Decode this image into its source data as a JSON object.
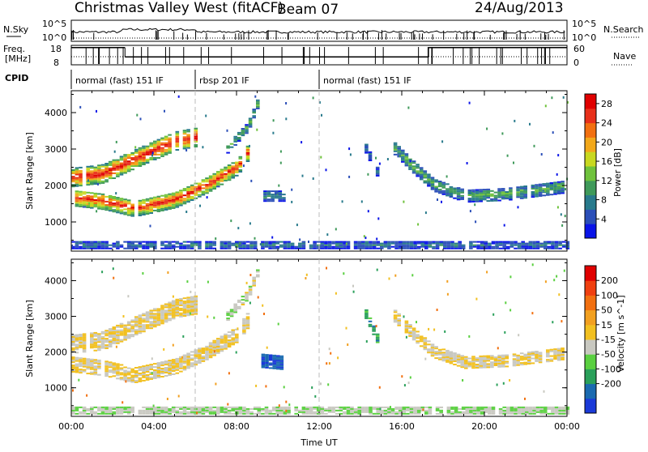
{
  "header": {
    "station": "Christmas Valley West (fitACF)",
    "beam": "Beam 07",
    "date": "24/Aug/2013"
  },
  "status_panel": {
    "nsky_label": "N.Sky",
    "nsearch_label": "N.Search",
    "freq_label_1": "Freq.",
    "freq_label_2": "[MHz]",
    "nave_label": "Nave",
    "cpid_label": "CPID",
    "n_axis": {
      "top": "10^5",
      "bottom": "10^0",
      "right_top": "10^5",
      "right_bottom": "10^0"
    },
    "freq_axis": {
      "top": "18",
      "bottom": "8",
      "ylim": [
        8,
        18
      ]
    },
    "nave_axis": {
      "top": "60",
      "bottom": "0",
      "ylim": [
        0,
        60
      ]
    },
    "cpid_segments": [
      {
        "label": "normal (fast) 151 IF",
        "start_hour": 0.0,
        "end_hour": 6.0
      },
      {
        "label": "rbsp 201 IF",
        "start_hour": 6.0,
        "end_hour": 12.0
      },
      {
        "label": "normal (fast) 151 IF",
        "start_hour": 12.0,
        "end_hour": 24.0
      }
    ],
    "freq_steps": [
      {
        "start_hour": 0.0,
        "end_hour": 2.6,
        "value": 17.2
      },
      {
        "start_hour": 2.6,
        "end_hour": 17.3,
        "value": 12.0
      },
      {
        "start_hour": 17.3,
        "end_hour": 24.0,
        "value": 17.2
      }
    ]
  },
  "chart_data": [
    {
      "type": "heatmap",
      "panel": "power",
      "xlabel": "",
      "ylabel": "Slant Range [km]",
      "x_unit": "hours UT",
      "xlim": [
        0,
        24
      ],
      "ylim": [
        200,
        4600
      ],
      "y_ticks": [
        "1000",
        "2000",
        "3000",
        "4000"
      ],
      "colorbar": {
        "label": "Power [dB]",
        "ticks": [
          "4",
          "8",
          "12",
          "16",
          "20",
          "24",
          "28"
        ],
        "range": [
          0,
          30
        ],
        "colors": [
          "#0a14e8",
          "#2b4fb8",
          "#287a8c",
          "#3f9a5a",
          "#6fc23c",
          "#c8d820",
          "#f2a81a",
          "#f27010",
          "#e8301a",
          "#e00000"
        ]
      },
      "regions": [
        {
          "name": "echo band A (upper)",
          "t": [
            [
              0.0,
              2200
            ],
            [
              1.5,
              2300
            ],
            [
              3.0,
              2700
            ],
            [
              5.0,
              3200
            ],
            [
              6.0,
              3300
            ]
          ],
          "width": 500,
          "power": 24
        },
        {
          "name": "echo band A (lower)",
          "t": [
            [
              0.0,
              1650
            ],
            [
              1.5,
              1550
            ],
            [
              3.0,
              1350
            ],
            [
              5.0,
              1600
            ],
            [
              6.5,
              2000
            ],
            [
              8.0,
              2500
            ],
            [
              8.5,
              2900
            ]
          ],
          "width": 450,
          "power": 22
        },
        {
          "name": "late echo",
          "t": [
            [
              7.5,
              3000
            ],
            [
              8.5,
              3600
            ],
            [
              9.0,
              4300
            ]
          ],
          "width": 250,
          "power": 10
        },
        {
          "name": "patch 9-10h",
          "t": [
            [
              9.3,
              1700
            ],
            [
              10.2,
              1700
            ]
          ],
          "width": 300,
          "power": 8
        },
        {
          "name": "patch 14-15h",
          "t": [
            [
              14.2,
              3000
            ],
            [
              14.8,
              2300
            ]
          ],
          "width": 250,
          "power": 6
        },
        {
          "name": "echo band B",
          "t": [
            [
              15.6,
              3000
            ],
            [
              16.5,
              2500
            ],
            [
              17.5,
              2000
            ],
            [
              19.0,
              1700
            ],
            [
              21.0,
              1750
            ],
            [
              23.8,
              1950
            ]
          ],
          "width": 350,
          "power": 10
        },
        {
          "name": "ground scatter strip",
          "t": [
            [
              0.0,
              350
            ],
            [
              24.0,
              350
            ]
          ],
          "width": 200,
          "power": 6
        }
      ]
    },
    {
      "type": "heatmap",
      "panel": "velocity",
      "xlabel": "Time UT",
      "ylabel": "Slant Range [km]",
      "x_unit": "hours UT",
      "xlim": [
        0,
        24
      ],
      "ylim": [
        200,
        4600
      ],
      "x_ticks": [
        "00:00",
        "04:00",
        "08:00",
        "12:00",
        "16:00",
        "20:00",
        "00:00"
      ],
      "y_ticks": [
        "1000",
        "2000",
        "3000",
        "4000"
      ],
      "colorbar": {
        "label": "Velocity [m s^-1]",
        "ticks": [
          "200",
          "100",
          "50",
          "15",
          "-15",
          "-50",
          "-100",
          "-200"
        ],
        "range": [
          -250,
          250
        ],
        "colors": [
          "#1a3ad8",
          "#1a6ab0",
          "#2aa05a",
          "#5ad040",
          "#c8c8c0",
          "#f2c020",
          "#f2a020",
          "#f27010",
          "#f04010",
          "#e00000"
        ]
      },
      "regions": [
        {
          "name": "ground scatter A (upper)",
          "t": [
            [
              0.0,
              2200
            ],
            [
              1.5,
              2300
            ],
            [
              3.0,
              2700
            ],
            [
              5.0,
              3200
            ],
            [
              6.0,
              3300
            ]
          ],
          "width": 500,
          "velocity": 0
        },
        {
          "name": "ground scatter A (lower)",
          "t": [
            [
              0.0,
              1650
            ],
            [
              1.5,
              1550
            ],
            [
              3.0,
              1350
            ],
            [
              5.0,
              1600
            ],
            [
              6.5,
              2000
            ],
            [
              8.0,
              2500
            ],
            [
              8.5,
              2900
            ]
          ],
          "width": 450,
          "velocity": 0
        },
        {
          "name": "late echo",
          "t": [
            [
              7.5,
              3000
            ],
            [
              8.5,
              3600
            ],
            [
              9.0,
              4300
            ]
          ],
          "width": 250,
          "velocity": -30
        },
        {
          "name": "red patch 9-10h",
          "t": [
            [
              9.2,
              1750
            ],
            [
              10.1,
              1700
            ]
          ],
          "width": 400,
          "velocity": -200
        },
        {
          "name": "patch 14-15h",
          "t": [
            [
              14.2,
              3050
            ],
            [
              14.8,
              2300
            ]
          ],
          "width": 250,
          "velocity": -120
        },
        {
          "name": "ground scatter B",
          "t": [
            [
              15.6,
              3000
            ],
            [
              16.5,
              2500
            ],
            [
              17.5,
              2000
            ],
            [
              19.0,
              1700
            ],
            [
              21.0,
              1750
            ],
            [
              23.8,
              1950
            ]
          ],
          "width": 350,
          "velocity": 0
        },
        {
          "name": "low-range strip",
          "t": [
            [
              0.0,
              350
            ],
            [
              24.0,
              350
            ]
          ],
          "width": 200,
          "velocity": -40
        }
      ]
    }
  ]
}
